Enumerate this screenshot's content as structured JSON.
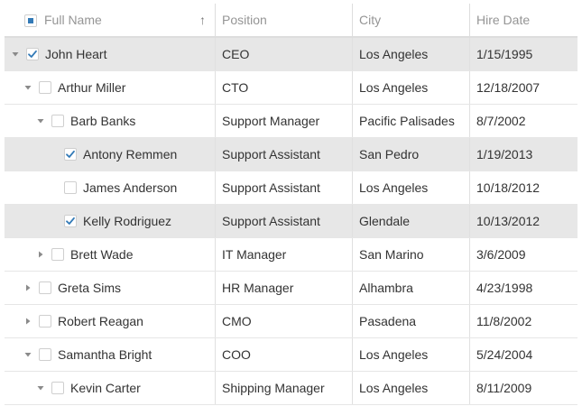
{
  "columns": {
    "name": "Full Name",
    "position": "Position",
    "city": "City",
    "hire_date": "Hire Date"
  },
  "header_checkbox": "indeterminate",
  "sort": {
    "column": "name",
    "direction": "ascending",
    "icon": "arrow-up-icon"
  },
  "rows": [
    {
      "name": "John Heart",
      "position": "CEO",
      "city": "Los Angeles",
      "hire_date": "1/15/1995",
      "level": 0,
      "expander": "expanded",
      "checked": true,
      "selected": true
    },
    {
      "name": "Arthur Miller",
      "position": "CTO",
      "city": "Los Angeles",
      "hire_date": "12/18/2007",
      "level": 1,
      "expander": "expanded",
      "checked": false,
      "selected": false
    },
    {
      "name": "Barb Banks",
      "position": "Support Manager",
      "city": "Pacific Palisades",
      "hire_date": "8/7/2002",
      "level": 2,
      "expander": "expanded",
      "checked": false,
      "selected": false
    },
    {
      "name": "Antony Remmen",
      "position": "Support Assistant",
      "city": "San Pedro",
      "hire_date": "1/19/2013",
      "level": 3,
      "expander": "none",
      "checked": true,
      "selected": true
    },
    {
      "name": "James Anderson",
      "position": "Support Assistant",
      "city": "Los Angeles",
      "hire_date": "10/18/2012",
      "level": 3,
      "expander": "none",
      "checked": false,
      "selected": false
    },
    {
      "name": "Kelly Rodriguez",
      "position": "Support Assistant",
      "city": "Glendale",
      "hire_date": "10/13/2012",
      "level": 3,
      "expander": "none",
      "checked": true,
      "selected": true
    },
    {
      "name": "Brett Wade",
      "position": "IT Manager",
      "city": "San Marino",
      "hire_date": "3/6/2009",
      "level": 2,
      "expander": "collapsed",
      "checked": false,
      "selected": false
    },
    {
      "name": "Greta Sims",
      "position": "HR Manager",
      "city": "Alhambra",
      "hire_date": "4/23/1998",
      "level": 1,
      "expander": "collapsed",
      "checked": false,
      "selected": false
    },
    {
      "name": "Robert Reagan",
      "position": "CMO",
      "city": "Pasadena",
      "hire_date": "11/8/2002",
      "level": 1,
      "expander": "collapsed",
      "checked": false,
      "selected": false
    },
    {
      "name": "Samantha Bright",
      "position": "COO",
      "city": "Los Angeles",
      "hire_date": "5/24/2004",
      "level": 1,
      "expander": "expanded",
      "checked": false,
      "selected": false
    },
    {
      "name": "Kevin Carter",
      "position": "Shipping Manager",
      "city": "Los Angeles",
      "hire_date": "8/11/2009",
      "level": 2,
      "expander": "expanded",
      "checked": false,
      "selected": false
    }
  ],
  "colors": {
    "accent": "#337ab7",
    "selected_row": "#e7e7e7",
    "border": "#dddddd"
  }
}
